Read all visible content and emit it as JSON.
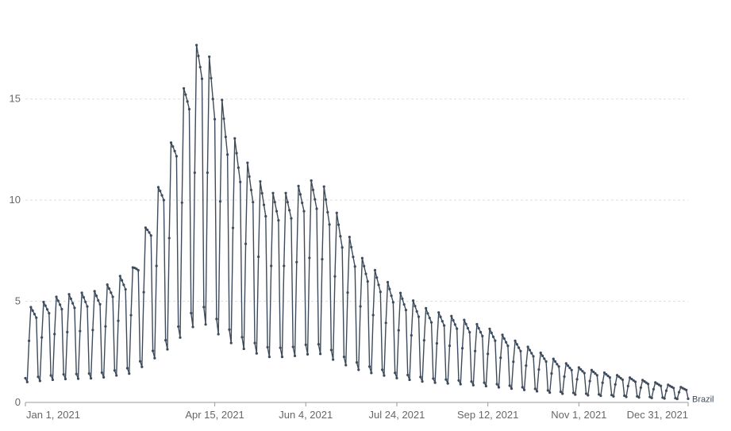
{
  "chart_data": {
    "type": "line",
    "title": "",
    "xlabel": "",
    "ylabel": "",
    "x_range": [
      "2021-01-01",
      "2021-12-31"
    ],
    "ylim": [
      0,
      19.5
    ],
    "grid": "horizontal dashed",
    "legend": "none; series label at end of line",
    "y_ticks": [
      0,
      5,
      10,
      15
    ],
    "x_ticks": [
      "Jan 1, 2021",
      "Apr 15, 2021",
      "Jun 4, 2021",
      "Jul 24, 2021",
      "Sep 12, 2021",
      "Nov 1, 2021",
      "Dec 31, 2021"
    ],
    "x_tick_dates": [
      "2021-01-01",
      "2021-04-15",
      "2021-06-04",
      "2021-07-24",
      "2021-09-12",
      "2021-11-01",
      "2021-12-31"
    ],
    "line_color": "#3d4b5c",
    "series": [
      {
        "name": "Brazil",
        "weekly_pattern": [
          0.3,
          0.25,
          0.75,
          1.15,
          1.1,
          1.05,
          1.0
        ],
        "anchors": [
          [
            "2021-01-01",
            4.0
          ],
          [
            "2021-01-20",
            4.6
          ],
          [
            "2021-02-10",
            4.8
          ],
          [
            "2021-03-01",
            5.8
          ],
          [
            "2021-03-10",
            8.0
          ],
          [
            "2021-03-20",
            10.5
          ],
          [
            "2021-04-01",
            14.5
          ],
          [
            "2021-04-08",
            16.0
          ],
          [
            "2021-04-15",
            14.0
          ],
          [
            "2021-04-25",
            11.5
          ],
          [
            "2021-05-05",
            10.0
          ],
          [
            "2021-05-15",
            9.0
          ],
          [
            "2021-05-25",
            9.0
          ],
          [
            "2021-06-04",
            9.5
          ],
          [
            "2021-06-12",
            9.6
          ],
          [
            "2021-06-25",
            7.5
          ],
          [
            "2021-07-05",
            6.2
          ],
          [
            "2021-07-24",
            4.8
          ],
          [
            "2021-08-10",
            4.0
          ],
          [
            "2021-08-28",
            3.6
          ],
          [
            "2021-09-12",
            3.2
          ],
          [
            "2021-10-01",
            2.5
          ],
          [
            "2021-10-20",
            1.8
          ],
          [
            "2021-11-01",
            1.5
          ],
          [
            "2021-11-20",
            1.2
          ],
          [
            "2021-12-10",
            0.9
          ],
          [
            "2021-12-31",
            0.6
          ]
        ]
      }
    ]
  }
}
